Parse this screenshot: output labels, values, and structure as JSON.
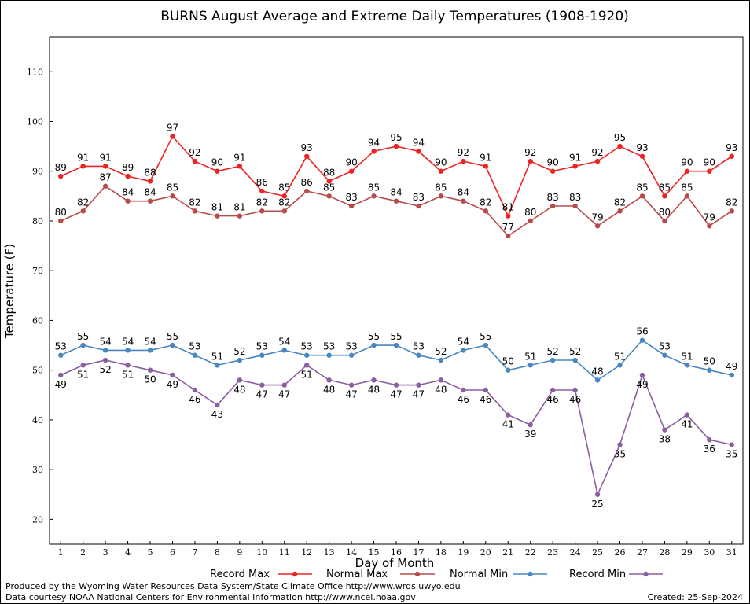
{
  "chart_data": {
    "type": "line",
    "title": "BURNS August Average and Extreme Daily Temperatures (1908-1920)",
    "xlabel": "Day of Month",
    "ylabel": "Temperature (F)",
    "xlim": [
      0.5,
      31.5
    ],
    "ylim": [
      15,
      117
    ],
    "yticks": [
      20,
      30,
      40,
      50,
      60,
      70,
      80,
      90,
      100,
      110
    ],
    "grid": true,
    "legend_placement": "bottom",
    "x": [
      1,
      2,
      3,
      4,
      5,
      6,
      7,
      8,
      9,
      10,
      11,
      12,
      13,
      14,
      15,
      16,
      17,
      18,
      19,
      20,
      21,
      22,
      23,
      24,
      25,
      26,
      27,
      28,
      29,
      30,
      31
    ],
    "series": [
      {
        "name": "Record Max",
        "color": "#ee2222",
        "label_side": "above",
        "values": [
          89,
          91,
          91,
          89,
          88,
          97,
          92,
          90,
          91,
          86,
          85,
          93,
          88,
          90,
          94,
          95,
          94,
          90,
          92,
          91,
          81,
          92,
          90,
          91,
          92,
          95,
          93,
          85,
          90,
          90,
          93
        ]
      },
      {
        "name": "Normal Max",
        "color": "#b84a4a",
        "label_side": "above",
        "values": [
          80,
          82,
          87,
          84,
          84,
          85,
          82,
          81,
          81,
          82,
          82,
          86,
          85,
          83,
          85,
          84,
          83,
          85,
          84,
          82,
          77,
          80,
          83,
          83,
          79,
          82,
          85,
          80,
          85,
          79,
          82
        ]
      },
      {
        "name": "Normal Min",
        "color": "#4a86c0",
        "label_side": "mixed",
        "values": [
          53,
          55,
          54,
          54,
          54,
          55,
          53,
          51,
          52,
          53,
          54,
          53,
          53,
          53,
          55,
          55,
          53,
          52,
          54,
          55,
          50,
          51,
          52,
          52,
          48,
          51,
          56,
          53,
          51,
          50,
          49
        ]
      },
      {
        "name": "Record Min",
        "color": "#8a5ea0",
        "label_side": "below",
        "values": [
          49,
          51,
          52,
          51,
          50,
          49,
          46,
          43,
          48,
          47,
          47,
          51,
          48,
          47,
          48,
          47,
          47,
          48,
          46,
          46,
          41,
          39,
          46,
          46,
          25,
          35,
          49,
          38,
          41,
          36,
          35
        ]
      }
    ]
  },
  "footer": {
    "left_line1": "Produced by the Wyoming Water Resources Data System/State Climate Office http://www.wrds.uwyo.edu",
    "left_line2": "Data courtesy NOAA National Centers for Environmental Information http://www.ncei.noaa.gov",
    "created": "Created:  25-Sep-2024"
  }
}
